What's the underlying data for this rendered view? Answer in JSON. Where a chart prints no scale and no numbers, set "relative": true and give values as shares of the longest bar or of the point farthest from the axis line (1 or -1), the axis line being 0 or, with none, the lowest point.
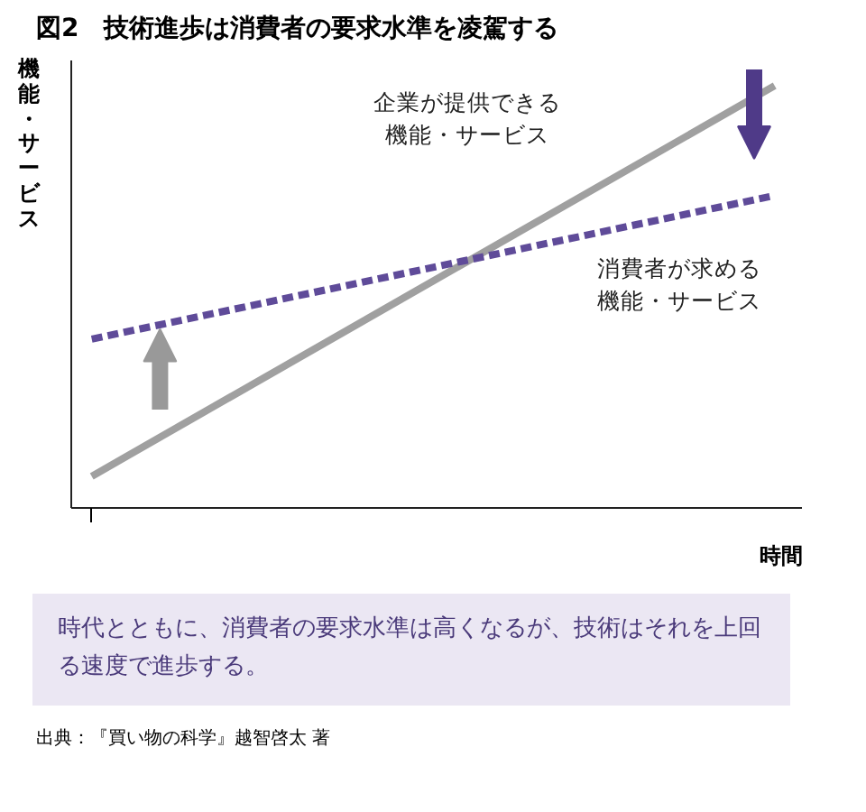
{
  "chart_data": {
    "type": "line",
    "title": "図2　技術進歩は消費者の要求水準を凌駕する",
    "xlabel": "時間",
    "ylabel": "機能・サービス",
    "relative": true,
    "categories": [
      null,
      null
    ],
    "legend": false,
    "marker": "none",
    "grid": false,
    "series": [
      {
        "name": "企業が提供できる機能・サービス",
        "color": "#a0a0a0",
        "line_style": "solid",
        "values": [
          0.075,
          1
        ]
      },
      {
        "name": "消費者が求める機能・サービス",
        "color": "#5f4b99",
        "line_style": "dashed",
        "values": [
          0.4,
          0.74
        ]
      }
    ],
    "annotations": [
      "時代とともに、消費者の要求水準は高くなるが、技術はそれを上回る速度で進歩する。",
      "出典：『買い物の科学』越智啓太 著"
    ]
  }
}
